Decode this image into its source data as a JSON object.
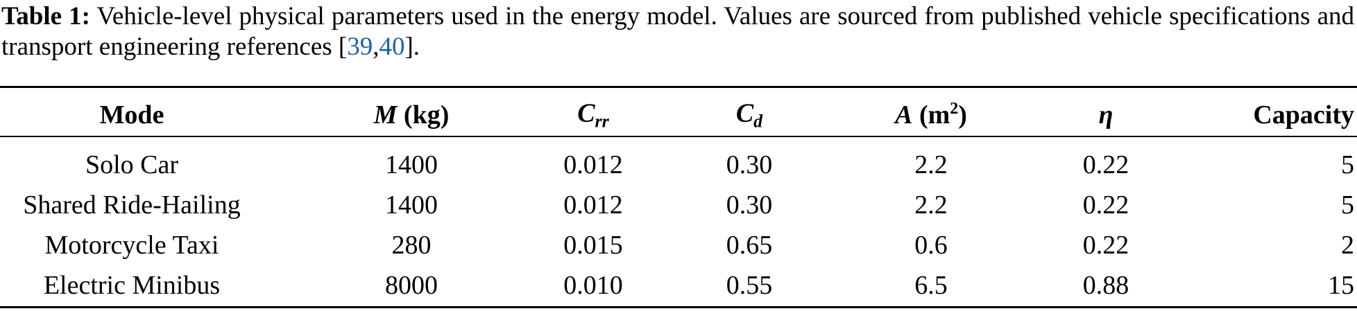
{
  "caption": [
    {
      "text": "Table 1:",
      "style": "bold"
    },
    {
      "text": " Vehicle-level physical parameters used in the energy model. Values are sourced from published vehicle specifications and transport engineering references ["
    },
    {
      "text": "39",
      "style": "link"
    },
    {
      "text": ","
    },
    {
      "text": "40",
      "style": "link"
    },
    {
      "text": "]."
    }
  ],
  "table": {
    "header": [
      [
        {
          "text": "Mode"
        }
      ],
      [
        {
          "text": "M",
          "style": "italic"
        },
        {
          "text": " (kg)"
        }
      ],
      [
        {
          "text": "C",
          "style": "italic"
        },
        {
          "text": "rr",
          "style": "sub"
        }
      ],
      [
        {
          "text": "C",
          "style": "italic"
        },
        {
          "text": "d",
          "style": "sub"
        }
      ],
      [
        {
          "text": "A",
          "style": "italic"
        },
        {
          "text": " (m"
        },
        {
          "text": "2",
          "style": "sup"
        },
        {
          "text": ")"
        }
      ],
      [
        {
          "text": "η",
          "style": "italic"
        }
      ],
      [
        {
          "text": "Capacity"
        }
      ]
    ],
    "rows": [
      [
        "Solo Car",
        "1400",
        "0.012",
        "0.30",
        "2.2",
        "0.22",
        "5"
      ],
      [
        "Shared Ride-Hailing",
        "1400",
        "0.012",
        "0.30",
        "2.2",
        "0.22",
        "5"
      ],
      [
        "Motorcycle Taxi",
        "280",
        "0.015",
        "0.65",
        "0.6",
        "0.22",
        "2"
      ],
      [
        "Electric Minibus",
        "8000",
        "0.010",
        "0.55",
        "6.5",
        "0.88",
        "15"
      ]
    ]
  }
}
